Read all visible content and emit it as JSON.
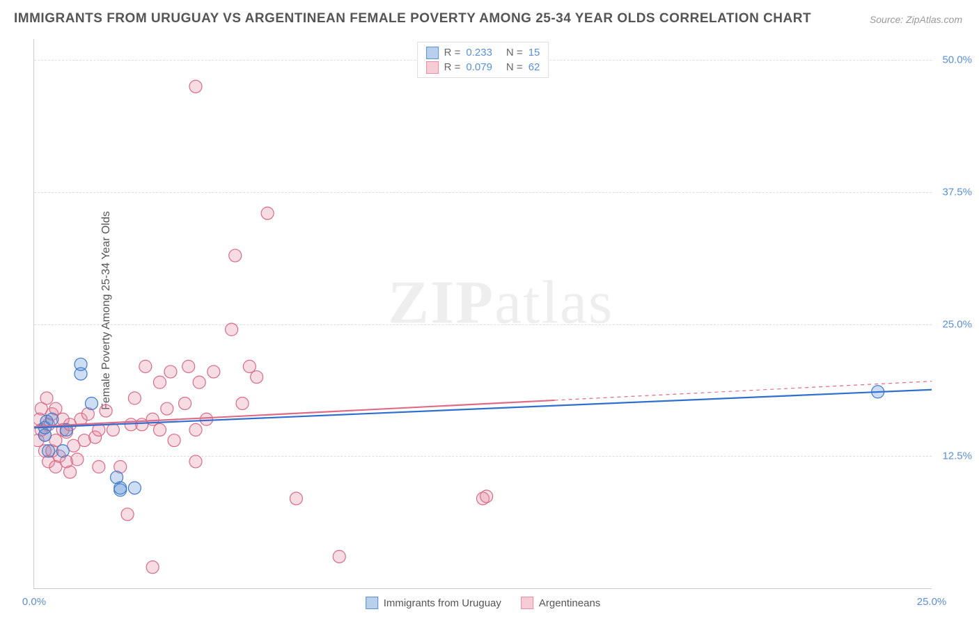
{
  "title": "IMMIGRANTS FROM URUGUAY VS ARGENTINEAN FEMALE POVERTY AMONG 25-34 YEAR OLDS CORRELATION CHART",
  "source": "Source: ZipAtlas.com",
  "watermark_bold": "ZIP",
  "watermark_rest": "atlas",
  "y_axis_label": "Female Poverty Among 25-34 Year Olds",
  "chart": {
    "type": "scatter",
    "background_color": "#ffffff",
    "grid_color": "#dddddd",
    "axis_color": "#cccccc",
    "xlim": [
      0,
      25
    ],
    "ylim": [
      0,
      52
    ],
    "x_ticks": [
      0,
      25
    ],
    "x_tick_labels": [
      "0.0%",
      "25.0%"
    ],
    "y_ticks": [
      12.5,
      25,
      37.5,
      50
    ],
    "y_tick_labels": [
      "12.5%",
      "25.0%",
      "37.5%",
      "50.0%"
    ],
    "marker_radius": 9,
    "marker_stroke_width": 1.2,
    "marker_fill_opacity": 0.3,
    "line_width": 2.2,
    "series": [
      {
        "name": "Immigrants from Uruguay",
        "swatch_fill": "#b8d0ec",
        "swatch_stroke": "#5a8fd8",
        "marker_fill": "#5a8fd8",
        "marker_stroke": "#3f7ac9",
        "line_color": "#2f6fd0",
        "r_value": "0.233",
        "n_value": "15",
        "regression": {
          "x1": 0,
          "y1": 15.2,
          "x2": 25,
          "y2": 18.8
        },
        "extrapolation": null,
        "points": [
          {
            "x": 0.3,
            "y": 14.5
          },
          {
            "x": 0.3,
            "y": 15.2
          },
          {
            "x": 0.35,
            "y": 15.8
          },
          {
            "x": 0.4,
            "y": 13.0
          },
          {
            "x": 0.8,
            "y": 13.0
          },
          {
            "x": 0.9,
            "y": 15.0
          },
          {
            "x": 1.3,
            "y": 20.3
          },
          {
            "x": 1.3,
            "y": 21.2
          },
          {
            "x": 1.6,
            "y": 17.5
          },
          {
            "x": 2.3,
            "y": 10.5
          },
          {
            "x": 2.4,
            "y": 9.3
          },
          {
            "x": 2.4,
            "y": 9.5
          },
          {
            "x": 2.8,
            "y": 9.5
          },
          {
            "x": 23.5,
            "y": 18.6
          },
          {
            "x": 0.5,
            "y": 16.0
          }
        ]
      },
      {
        "name": "Argentineans",
        "swatch_fill": "#f6cdd6",
        "swatch_stroke": "#e98ba3",
        "marker_fill": "#e98ba3",
        "marker_stroke": "#d76b87",
        "line_color": "#e06b87",
        "r_value": "0.079",
        "n_value": "62",
        "regression": {
          "x1": 0,
          "y1": 15.3,
          "x2": 14.5,
          "y2": 17.8
        },
        "extrapolation": {
          "x1": 14.5,
          "y1": 17.8,
          "x2": 25,
          "y2": 19.6
        },
        "points": [
          {
            "x": 0.1,
            "y": 14.0
          },
          {
            "x": 0.15,
            "y": 16.0
          },
          {
            "x": 0.2,
            "y": 15.0
          },
          {
            "x": 0.2,
            "y": 17.0
          },
          {
            "x": 0.3,
            "y": 13.0
          },
          {
            "x": 0.3,
            "y": 14.5
          },
          {
            "x": 0.35,
            "y": 18.0
          },
          {
            "x": 0.4,
            "y": 12.0
          },
          {
            "x": 0.4,
            "y": 15.5
          },
          {
            "x": 0.5,
            "y": 13.0
          },
          {
            "x": 0.5,
            "y": 16.5
          },
          {
            "x": 0.6,
            "y": 11.5
          },
          {
            "x": 0.6,
            "y": 14.0
          },
          {
            "x": 0.6,
            "y": 17.0
          },
          {
            "x": 0.7,
            "y": 12.5
          },
          {
            "x": 0.8,
            "y": 15.0
          },
          {
            "x": 0.8,
            "y": 16.0
          },
          {
            "x": 0.9,
            "y": 12.0
          },
          {
            "x": 0.9,
            "y": 14.8
          },
          {
            "x": 1.0,
            "y": 11.0
          },
          {
            "x": 1.0,
            "y": 15.5
          },
          {
            "x": 1.1,
            "y": 13.5
          },
          {
            "x": 1.2,
            "y": 12.2
          },
          {
            "x": 1.3,
            "y": 16.0
          },
          {
            "x": 1.4,
            "y": 14.0
          },
          {
            "x": 1.5,
            "y": 16.5
          },
          {
            "x": 1.7,
            "y": 14.3
          },
          {
            "x": 1.8,
            "y": 11.5
          },
          {
            "x": 1.8,
            "y": 15.0
          },
          {
            "x": 2.0,
            "y": 16.8
          },
          {
            "x": 2.2,
            "y": 15.0
          },
          {
            "x": 2.4,
            "y": 11.5
          },
          {
            "x": 2.6,
            "y": 7.0
          },
          {
            "x": 2.7,
            "y": 15.5
          },
          {
            "x": 2.8,
            "y": 18.0
          },
          {
            "x": 3.0,
            "y": 15.5
          },
          {
            "x": 3.1,
            "y": 21.0
          },
          {
            "x": 3.3,
            "y": 2.0
          },
          {
            "x": 3.3,
            "y": 16.0
          },
          {
            "x": 3.5,
            "y": 15.0
          },
          {
            "x": 3.5,
            "y": 19.5
          },
          {
            "x": 3.7,
            "y": 17.0
          },
          {
            "x": 3.8,
            "y": 20.5
          },
          {
            "x": 3.9,
            "y": 14.0
          },
          {
            "x": 4.2,
            "y": 17.5
          },
          {
            "x": 4.3,
            "y": 21.0
          },
          {
            "x": 4.5,
            "y": 12.0
          },
          {
            "x": 4.5,
            "y": 15.0
          },
          {
            "x": 4.5,
            "y": 47.5
          },
          {
            "x": 4.6,
            "y": 19.5
          },
          {
            "x": 4.8,
            "y": 16.0
          },
          {
            "x": 5.0,
            "y": 20.5
          },
          {
            "x": 5.5,
            "y": 24.5
          },
          {
            "x": 5.6,
            "y": 31.5
          },
          {
            "x": 5.8,
            "y": 17.5
          },
          {
            "x": 6.0,
            "y": 21.0
          },
          {
            "x": 6.2,
            "y": 20.0
          },
          {
            "x": 6.5,
            "y": 35.5
          },
          {
            "x": 7.3,
            "y": 8.5
          },
          {
            "x": 8.5,
            "y": 3.0
          },
          {
            "x": 12.5,
            "y": 8.5
          },
          {
            "x": 12.6,
            "y": 8.7
          }
        ]
      }
    ],
    "legend_top": {
      "r_prefix": "R  = ",
      "n_prefix": "N  = "
    },
    "legend_bottom_labels": [
      "Immigrants from Uruguay",
      "Argentineans"
    ],
    "title_fontsize": 19,
    "label_fontsize": 16,
    "tick_fontsize": 15,
    "tick_color": "#5a8fd8",
    "title_color": "#555555",
    "label_color": "#555555"
  }
}
